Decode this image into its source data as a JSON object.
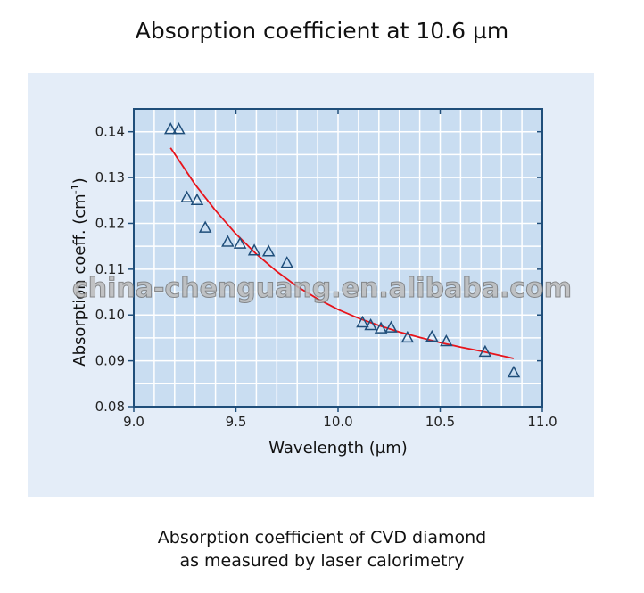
{
  "title": "Absorption coefficient at 10.6 µm",
  "caption_line1": "Absorption coefficient of CVD diamond",
  "caption_line2": "as measured by laser calorimetry",
  "watermark": "china-chenguang.en.alibaba.com",
  "chart_data": {
    "type": "scatter",
    "xlabel": "Wavelength (µm)",
    "ylabel": "Absorption coeff. (cm",
    "ylabel_sup": "-1",
    "ylabel_end": ")",
    "xlim": [
      9.0,
      11.0
    ],
    "ylim": [
      0.08,
      0.145
    ],
    "xticks": [
      "9.0",
      "9.5",
      "10.0",
      "10.5",
      "11.0"
    ],
    "yticks": [
      "0.08",
      "0.09",
      "0.10",
      "0.11",
      "0.12",
      "0.13",
      "0.14"
    ],
    "grid": true,
    "colors": {
      "plot_bg": "#c9ddf1",
      "axis": "#1f4e7a",
      "marker": "#1f4e7a",
      "fit": "#e8141b",
      "panel": "#e4edf8"
    },
    "points": {
      "marker": "triangle",
      "x": [
        9.18,
        9.22,
        9.26,
        9.31,
        9.35,
        9.46,
        9.52,
        9.59,
        9.66,
        9.75,
        10.12,
        10.16,
        10.21,
        10.26,
        10.34,
        10.46,
        10.53,
        10.72,
        10.86
      ],
      "y": [
        0.1406,
        0.1406,
        0.1257,
        0.1251,
        0.1191,
        0.116,
        0.1156,
        0.1141,
        0.1139,
        0.1114,
        0.0984,
        0.0978,
        0.0971,
        0.0973,
        0.0951,
        0.0953,
        0.0943,
        0.092,
        0.0875
      ]
    },
    "fit_curve": {
      "type": "line",
      "x": [
        9.18,
        9.3,
        9.4,
        9.5,
        9.6,
        9.7,
        9.8,
        9.9,
        10.0,
        10.1,
        10.2,
        10.3,
        10.4,
        10.5,
        10.6,
        10.7,
        10.86
      ],
      "y": [
        0.1365,
        0.1285,
        0.1228,
        0.1177,
        0.1133,
        0.1095,
        0.1062,
        0.1035,
        0.1012,
        0.0993,
        0.0977,
        0.0963,
        0.0951,
        0.094,
        0.093,
        0.0921,
        0.0905
      ]
    }
  }
}
